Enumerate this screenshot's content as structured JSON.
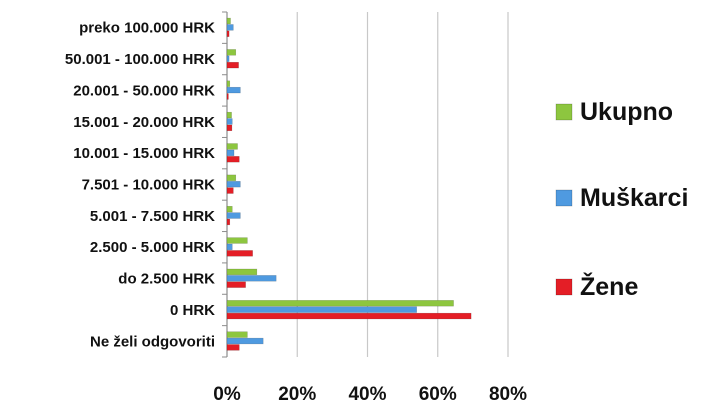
{
  "chart_data": {
    "type": "bar",
    "orientation": "horizontal",
    "categories": [
      "preko 100.000 HRK",
      "50.001 - 100.000 HRK",
      "20.001 - 50.000 HRK",
      "15.001 - 20.000 HRK",
      "10.001 - 15.000 HRK",
      "7.501 - 10.000 HRK",
      "5.001 - 7.500 HRK",
      "2.500 - 5.000 HRK",
      "do 2.500 HRK",
      "0 HRK",
      "Ne želi odgovoriti"
    ],
    "series": [
      {
        "name": "Ukupno",
        "color": "#8dc63f",
        "values": [
          1.0,
          2.5,
          0.8,
          1.3,
          3.0,
          2.5,
          1.5,
          5.8,
          8.5,
          64.5,
          5.8
        ]
      },
      {
        "name": "Muškarci",
        "color": "#4f9ae0",
        "values": [
          1.8,
          0.6,
          3.8,
          1.5,
          2.0,
          3.8,
          3.8,
          1.5,
          14.0,
          54.0,
          10.3
        ]
      },
      {
        "name": "Žene",
        "color": "#e41e26",
        "values": [
          0.6,
          3.3,
          0.4,
          1.4,
          3.5,
          1.8,
          0.8,
          7.3,
          5.3,
          69.5,
          3.5
        ]
      }
    ],
    "xlim": [
      0,
      80
    ],
    "xticks": [
      "0%",
      "20%",
      "40%",
      "60%",
      "80%"
    ],
    "grid": "vertical",
    "legend_position": "right",
    "title": "",
    "xlabel": "",
    "ylabel": ""
  }
}
